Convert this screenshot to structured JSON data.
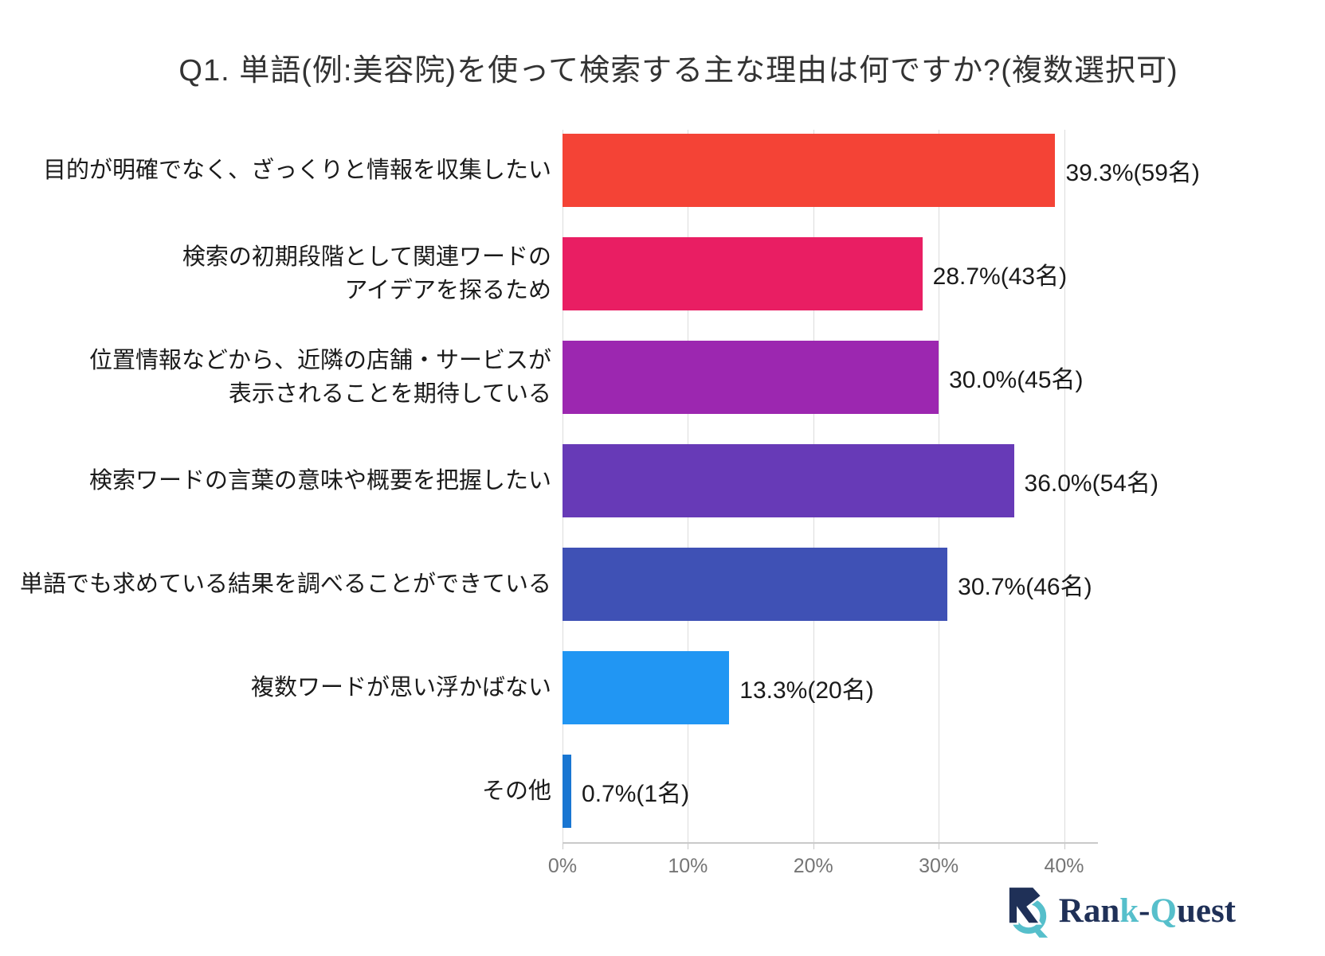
{
  "chart_data": {
    "type": "bar",
    "orientation": "horizontal",
    "title": "Q1. 単語(例:美容院)を使って検索する主な理由は何ですか?(複数選択可)",
    "categories": [
      "目的が明確でなく、ざっくりと情報を収集したい",
      "検索の初期段階として関連ワードのアイデアを探るため",
      "位置情報などから、近隣の店舗・サービスが表示されることを期待している",
      "検索ワードの言葉の意味や概要を把握したい",
      "単語でも求めている結果を調べることができている",
      "複数ワードが思い浮かばない",
      "その他"
    ],
    "values": [
      39.3,
      28.7,
      30.0,
      36.0,
      30.7,
      13.3,
      0.7
    ],
    "counts": [
      59,
      43,
      45,
      54,
      46,
      20,
      1
    ],
    "xlabel": "",
    "ylabel": "",
    "xlim": [
      0,
      42.7
    ],
    "grid": true,
    "legend": "none",
    "x_ticks": {
      "values": [
        0,
        10,
        20,
        30,
        40
      ],
      "labels": [
        "0%",
        "10%",
        "20%",
        "30%",
        "40%"
      ]
    },
    "rows": [
      {
        "label_lines": [
          "目的が明確でなく、ざっくりと情報を収集したい"
        ],
        "value": 39.3,
        "value_label": "39.3%(59名)",
        "color": "#F44336"
      },
      {
        "label_lines": [
          "検索の初期段階として関連ワードの",
          "アイデアを探るため"
        ],
        "value": 28.7,
        "value_label": "28.7%(43名)",
        "color": "#E91E63"
      },
      {
        "label_lines": [
          "位置情報などから、近隣の店舗・サービスが",
          "表示されることを期待している"
        ],
        "value": 30.0,
        "value_label": "30.0%(45名)",
        "color": "#9C27B0"
      },
      {
        "label_lines": [
          "検索ワードの言葉の意味や概要を把握したい"
        ],
        "value": 36.0,
        "value_label": "36.0%(54名)",
        "color": "#673AB7"
      },
      {
        "label_lines": [
          "単語でも求めている結果を調べることができている"
        ],
        "value": 30.7,
        "value_label": "30.7%(46名)",
        "color": "#3F51B5"
      },
      {
        "label_lines": [
          "複数ワードが思い浮かばない"
        ],
        "value": 13.3,
        "value_label": "13.3%(20名)",
        "color": "#2196F3"
      },
      {
        "label_lines": [
          "その他"
        ],
        "value": 0.7,
        "value_label": "0.7%(1名)",
        "color": "#1976D2"
      }
    ]
  },
  "branding": {
    "logo_name": "Rank-Quest",
    "logo_navy": "#1F3057",
    "logo_teal": "#56BFCB",
    "logo_text_parts": [
      {
        "text": "Ran",
        "color": "#1F3057"
      },
      {
        "text": "k",
        "color": "#56BFCB"
      },
      {
        "text": "-",
        "color": "#1F3057"
      },
      {
        "text": "Q",
        "color": "#56BFCB"
      },
      {
        "text": "uest",
        "color": "#1F3057"
      }
    ]
  }
}
